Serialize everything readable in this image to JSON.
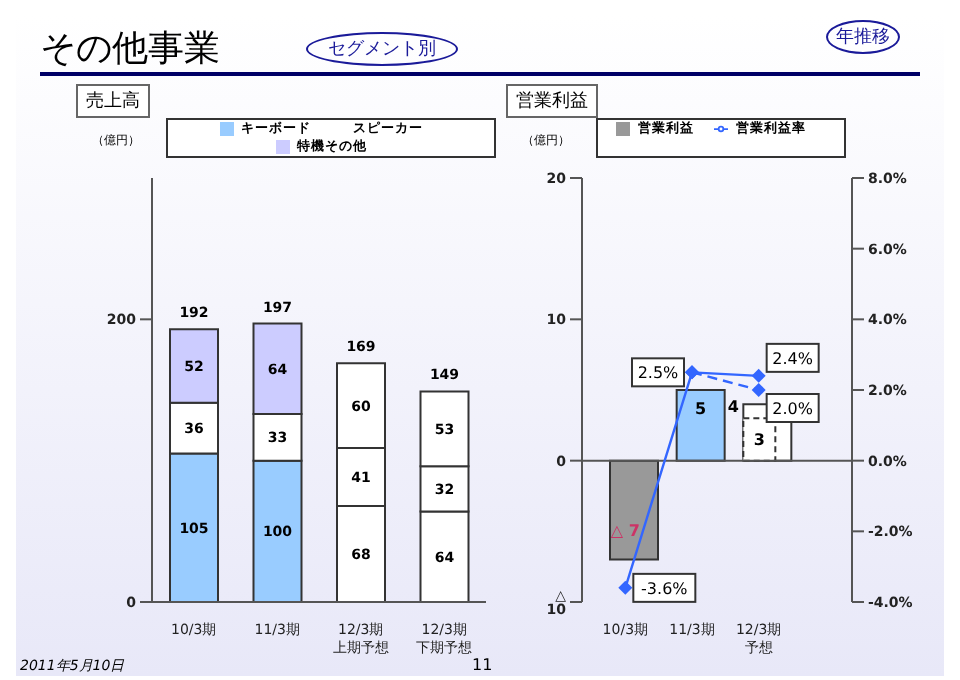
{
  "chart_data": [
    {
      "type": "bar",
      "title": "売上高",
      "ylabel": "（億円）",
      "stacked": true,
      "annotations": [
        "その他事業",
        "セグメント別",
        "年推移",
        "2011年5月10日",
        "11"
      ],
      "categories": [
        "10/3期",
        "11/3期",
        "12/3期上期予想",
        "12/3期下期予想"
      ],
      "series": [
        {
          "name": "キーボード",
          "color": "#99ccff",
          "colors": [
            "#99ccff",
            "#99ccff",
            "#ffffff",
            "#ffffff"
          ],
          "values": [
            105,
            100,
            68,
            64
          ]
        },
        {
          "name": "スピーカー",
          "color": "#ffffff",
          "colors": [
            "#ffffff",
            "#ffffff",
            "#ffffff",
            "#ffffff"
          ],
          "values": [
            36,
            33,
            41,
            32
          ]
        },
        {
          "name": "特機その他",
          "color": "#ccccff",
          "colors": [
            "#ccccff",
            "#ccccff",
            "#ffffff",
            "#ffffff"
          ],
          "values": [
            52,
            64,
            60,
            53
          ]
        }
      ],
      "totals": [
        "192",
        "197",
        "169",
        "149"
      ],
      "ylim": [
        0,
        300
      ],
      "yticks": [
        0,
        200
      ],
      "data_labels": true,
      "legend": "top",
      "grid": false
    },
    {
      "type": "bar",
      "title": "営業利益",
      "ylabel": "（億円）",
      "annotations": [
        {
          "text": "△ 7",
          "x": "10/3期",
          "y": -7
        }
      ],
      "categories": [
        "10/3期",
        "11/3期",
        "12/3期予想"
      ],
      "series": [
        {
          "name": "営業利益",
          "color": "#999999",
          "colors": [
            "#999999",
            "#99ccff",
            "#ffffff"
          ],
          "values": [
            -7,
            5,
            4
          ],
          "value_labels": [
            null,
            "5",
            "4"
          ]
        },
        {
          "color": "#ffffff",
          "values": [
            null,
            null,
            3
          ],
          "value_labels": [
            null,
            null,
            "3"
          ]
        },
        {
          "name": "営業利益率",
          "type": "line",
          "axis": "y2",
          "color": "#3366ff",
          "marker": "diamond",
          "line_style": "solid",
          "values": [
            -3.6,
            2.5,
            2.4
          ],
          "value_labels": [
            "-3.6%",
            "2.5%",
            "2.4%"
          ]
        },
        {
          "type": "line",
          "axis": "y2",
          "color": "#3366ff",
          "marker": "diamond",
          "line_style": "dashed",
          "values": [
            null,
            2.5,
            2.0
          ],
          "value_labels": [
            null,
            null,
            "2.0%"
          ]
        }
      ],
      "ylim": [
        -10,
        20
      ],
      "yticks": [
        {
          "value": -10,
          "label": "△ 10"
        },
        0,
        10,
        20
      ],
      "y2lim": [
        -4,
        8
      ],
      "y2ticks": [
        {
          "value": -4,
          "label": "-4.0%"
        },
        {
          "value": -2,
          "label": "-2.0%"
        },
        {
          "value": 0,
          "label": "0.0%"
        },
        {
          "value": 2,
          "label": "2.0%"
        },
        {
          "value": 4,
          "label": "4.0%"
        },
        {
          "value": 6,
          "label": "6.0%"
        },
        {
          "value": 8,
          "label": "8.0%"
        }
      ],
      "ref_lines": [
        {
          "axis": "y",
          "value": 0,
          "color": "#555555"
        }
      ],
      "legend": "top",
      "grid": false
    }
  ]
}
